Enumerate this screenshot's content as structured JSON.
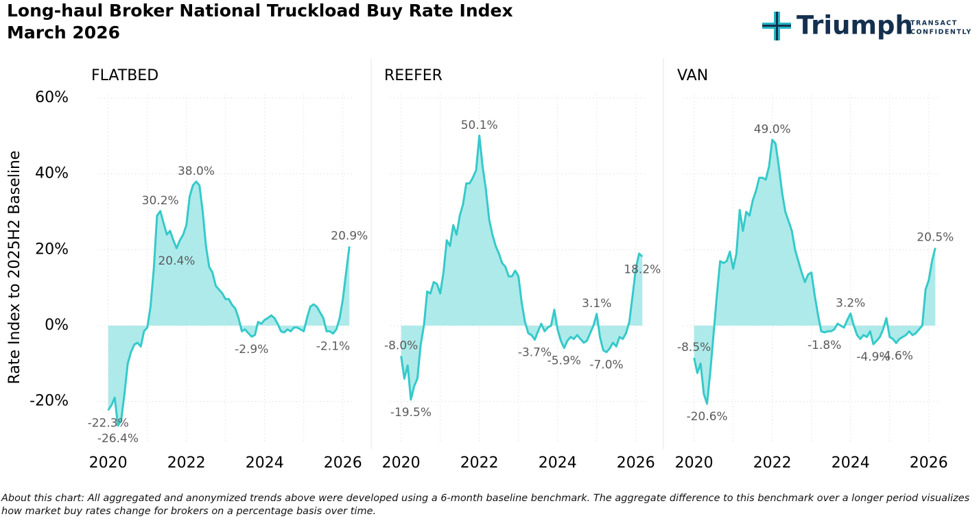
{
  "chart_data": {
    "type": "line",
    "title": "Long-haul Broker National Truckload Buy Rate Index",
    "subtitle": "March 2026",
    "y_label": "Rate Index to 2025H2 Baseline",
    "brand": {
      "name": "Triumph",
      "tagline_1": "TRANSACT",
      "tagline_2": "CONFIDENTLY"
    },
    "footnote": "About this chart: All aggregated and anonymized trends above were developed using a 6-month baseline benchmark.  The aggregate difference to this benchmark over a longer period visualizes how market buy rates change for brokers on a percentage basis over time.",
    "color": "#36c9c9",
    "fill_color": "#aeeaea",
    "grid": true,
    "xlim": [
      2019.55,
      2026.6
    ],
    "xticks": [
      2020,
      2022,
      2024,
      2026
    ],
    "xgrid": [
      2020,
      2021,
      2022,
      2023,
      2024,
      2025,
      2026
    ],
    "ylim": [
      -31,
      61
    ],
    "yticks": [
      {
        "value": -20,
        "label": "-20%"
      },
      {
        "value": 0,
        "label": "0%"
      },
      {
        "value": 20,
        "label": "20%"
      },
      {
        "value": 40,
        "label": "40%"
      },
      {
        "value": 60,
        "label": "60%"
      }
    ],
    "x": [
      2020,
      2020.083,
      2020.167,
      2020.25,
      2020.333,
      2020.417,
      2020.5,
      2020.583,
      2020.667,
      2020.75,
      2020.833,
      2020.917,
      2021,
      2021.083,
      2021.167,
      2021.25,
      2021.333,
      2021.417,
      2021.5,
      2021.583,
      2021.667,
      2021.75,
      2021.833,
      2021.917,
      2022,
      2022.083,
      2022.167,
      2022.25,
      2022.333,
      2022.417,
      2022.5,
      2022.583,
      2022.667,
      2022.75,
      2022.833,
      2022.917,
      2023,
      2023.083,
      2023.167,
      2023.25,
      2023.333,
      2023.417,
      2023.5,
      2023.583,
      2023.667,
      2023.75,
      2023.833,
      2023.917,
      2024,
      2024.083,
      2024.167,
      2024.25,
      2024.333,
      2024.417,
      2024.5,
      2024.583,
      2024.667,
      2024.75,
      2024.833,
      2024.917,
      2025,
      2025.083,
      2025.167,
      2025.25,
      2025.333,
      2025.417,
      2025.5,
      2025.583,
      2025.667,
      2025.75,
      2025.833,
      2025.917,
      2026,
      2026.083,
      2026.167
    ],
    "panels": [
      {
        "name": "FLATBED",
        "values": [
          -22.3,
          -21,
          -19,
          -26.4,
          -25,
          -18,
          -10,
          -7,
          -5,
          -4.5,
          -5.5,
          -1.5,
          -0.5,
          5,
          15,
          29,
          30.2,
          27,
          24,
          25,
          22.5,
          20.4,
          22.5,
          24,
          26.5,
          34,
          37,
          38.0,
          37,
          30,
          21,
          15.5,
          14,
          10.5,
          9.5,
          8.5,
          7,
          7,
          5.5,
          4.5,
          2,
          -1.5,
          -1,
          -2,
          -2.9,
          -2.5,
          1,
          0.5,
          1.5,
          2,
          2.7,
          2,
          0.5,
          -1.5,
          -1.8,
          -1,
          -1.5,
          -0.5,
          -0.5,
          -1,
          -1.5,
          2,
          5,
          5.6,
          5,
          3.5,
          2,
          -1.5,
          -1.5,
          -2.1,
          -1,
          2,
          7,
          14,
          20.9
        ],
        "value_labels": [
          "-22.3%",
          null,
          null,
          "-26.4%",
          null,
          null,
          null,
          null,
          null,
          null,
          null,
          null,
          null,
          null,
          null,
          null,
          "30.2%",
          null,
          null,
          null,
          null,
          "20.4%",
          null,
          null,
          null,
          null,
          null,
          "38.0%",
          null,
          null,
          null,
          null,
          null,
          null,
          null,
          null,
          null,
          null,
          null,
          null,
          null,
          null,
          null,
          null,
          "-2.9%",
          null,
          null,
          null,
          null,
          null,
          null,
          null,
          null,
          null,
          null,
          null,
          null,
          null,
          null,
          null,
          null,
          null,
          null,
          null,
          null,
          null,
          null,
          null,
          null,
          "-2.1%",
          null,
          null,
          null,
          null,
          "20.9%"
        ]
      },
      {
        "name": "REEFER",
        "values": [
          -8.0,
          -14,
          -10.5,
          -19.5,
          -16,
          -14,
          -5,
          0,
          9,
          8.5,
          11.5,
          11,
          8.5,
          14,
          22.5,
          21,
          26.5,
          24,
          29,
          32,
          37.5,
          37.5,
          39,
          41,
          50.1,
          42,
          36,
          28,
          24,
          21,
          19,
          16.5,
          15.5,
          13,
          13,
          14.5,
          13,
          6,
          1,
          -2,
          -2.5,
          -3.7,
          -1.5,
          0.5,
          -1.5,
          -0.5,
          0,
          4.2,
          -1,
          -4,
          -5.9,
          -4,
          -3,
          -3.5,
          -2.5,
          -3.5,
          -4.5,
          -4,
          -2,
          0,
          3.1,
          -3,
          -6.5,
          -7.0,
          -6,
          -4.5,
          -5.5,
          -3,
          -3.5,
          -2,
          1,
          8,
          15,
          19,
          18.2
        ],
        "value_labels": [
          "-8.0%",
          null,
          null,
          "-19.5%",
          null,
          null,
          null,
          null,
          null,
          null,
          null,
          null,
          null,
          null,
          null,
          null,
          null,
          null,
          null,
          null,
          null,
          null,
          null,
          null,
          "50.1%",
          null,
          null,
          null,
          null,
          null,
          null,
          null,
          null,
          null,
          null,
          null,
          null,
          null,
          null,
          null,
          null,
          "-3.7%",
          null,
          null,
          null,
          null,
          null,
          null,
          null,
          null,
          "-5.9%",
          null,
          null,
          null,
          null,
          null,
          null,
          null,
          null,
          null,
          "3.1%",
          null,
          null,
          "-7.0%",
          null,
          null,
          null,
          null,
          null,
          null,
          null,
          null,
          null,
          null,
          "18.2%"
        ]
      },
      {
        "name": "VAN",
        "values": [
          -8.5,
          -12.5,
          -10,
          -18,
          -20.6,
          -12,
          -2,
          8,
          17,
          16.5,
          17,
          19.5,
          15,
          19,
          30.5,
          25,
          30,
          29,
          33,
          35.5,
          39,
          39,
          38.5,
          42,
          49.0,
          48,
          42,
          35,
          30,
          27.5,
          25,
          20,
          17,
          14,
          11.5,
          13.5,
          14,
          8,
          3,
          -1.5,
          -1.8,
          -1.5,
          -1.5,
          -1,
          0.5,
          0,
          -0.5,
          1.5,
          3.2,
          0,
          -2.5,
          -3.5,
          -2.5,
          -3,
          -1.5,
          -4.9,
          -4,
          -3,
          -1,
          2,
          -3,
          -3.5,
          -4.6,
          -3.5,
          -3,
          -2.5,
          -1.5,
          -2.5,
          -2,
          -1,
          0,
          9.5,
          12,
          17,
          20.5
        ],
        "value_labels": [
          "-8.5%",
          null,
          null,
          null,
          "-20.6%",
          null,
          null,
          null,
          null,
          null,
          null,
          null,
          null,
          null,
          null,
          null,
          null,
          null,
          null,
          null,
          null,
          null,
          null,
          null,
          "49.0%",
          null,
          null,
          null,
          null,
          null,
          null,
          null,
          null,
          null,
          null,
          null,
          null,
          null,
          null,
          null,
          "-1.8%",
          null,
          null,
          null,
          null,
          null,
          null,
          null,
          "3.2%",
          null,
          null,
          null,
          null,
          null,
          null,
          "-4.9%",
          null,
          null,
          null,
          null,
          null,
          null,
          "-4.6%",
          null,
          null,
          null,
          null,
          null,
          null,
          null,
          null,
          null,
          null,
          null,
          "20.5%"
        ]
      }
    ]
  }
}
